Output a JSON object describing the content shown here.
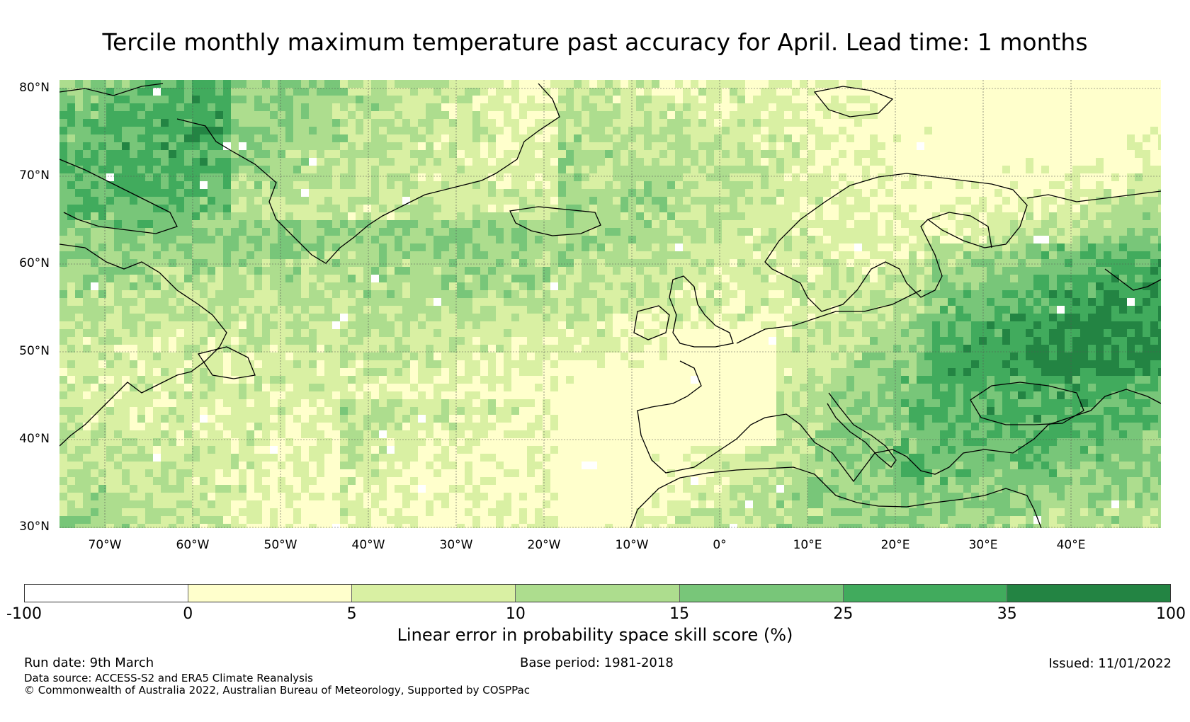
{
  "title": "Tercile monthly maximum temperature past accuracy for April. Lead time: 1 months",
  "map": {
    "region": "North Atlantic and Europe",
    "lat_labels": [
      "80°N",
      "70°N",
      "60°N",
      "50°N",
      "40°N",
      "30°N"
    ],
    "lon_labels": [
      "70°W",
      "60°W",
      "50°W",
      "40°W",
      "30°W",
      "20°W",
      "10°W",
      "0°",
      "10°E",
      "20°E",
      "30°E",
      "40°E"
    ],
    "lat_range": [
      30,
      81
    ],
    "lon_range": [
      -75,
      50
    ]
  },
  "colorbar": {
    "ticks": [
      "-100",
      "0",
      "5",
      "10",
      "15",
      "25",
      "35",
      "100"
    ],
    "colors": [
      "#ffffff",
      "#ffffcc",
      "#d9f0a3",
      "#addd8e",
      "#78c679",
      "#41ab5d",
      "#238443"
    ],
    "label": "Linear error in probability space skill score (%)"
  },
  "footer": {
    "run_date": "Run date: 9th March",
    "base_period": "Base period: 1981-2018",
    "issued": "Issued: 11/01/2022",
    "data_source": "Data source: ACCESS-S2 and ERA5 Climate Reanalysis",
    "copyright": "© Commonwealth of Australia 2022, Australian Bureau of Meteorology, Supported by COSPPac"
  }
}
